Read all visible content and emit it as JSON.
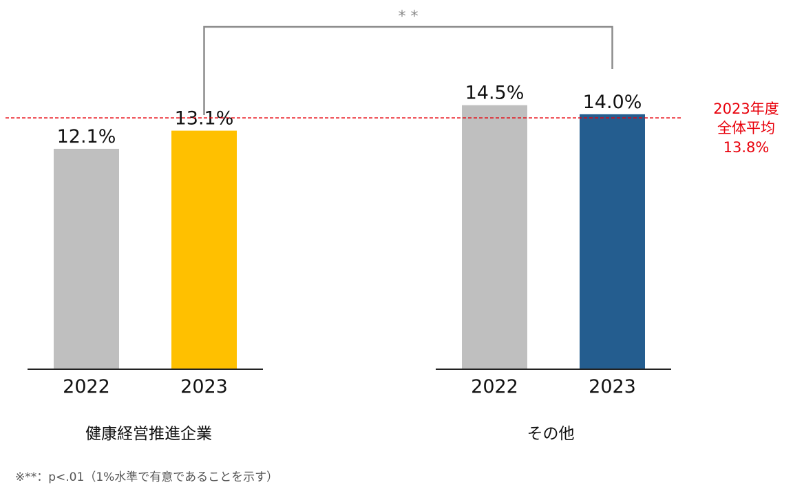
{
  "chart_data": {
    "type": "bar",
    "groups": [
      {
        "name": "健康経営推進企業",
        "categories": [
          "2022",
          "2023"
        ],
        "values": [
          12.1,
          13.1
        ],
        "value_labels": [
          "12.1%",
          "13.1%"
        ],
        "colors": [
          "#bfbfbf",
          "#ffc000"
        ]
      },
      {
        "name": "その他",
        "categories": [
          "2022",
          "2023"
        ],
        "values": [
          14.5,
          14.0
        ],
        "value_labels": [
          "14.5%",
          "14.0%"
        ],
        "colors": [
          "#bfbfbf",
          "#245d8f"
        ]
      }
    ],
    "ylim": [
      0,
      16.5
    ],
    "grid": false,
    "reference_line": {
      "value": 13.8,
      "label_lines": [
        "2023年度",
        "全体平均",
        "13.8%"
      ],
      "color": "#e8000b",
      "style": "dashed"
    },
    "significance": {
      "label": "* *",
      "between": [
        "健康経営推進企業 2023",
        "その他 2023"
      ]
    },
    "footnote": "※**：p<.01（1%水準で有意であることを示す）"
  }
}
